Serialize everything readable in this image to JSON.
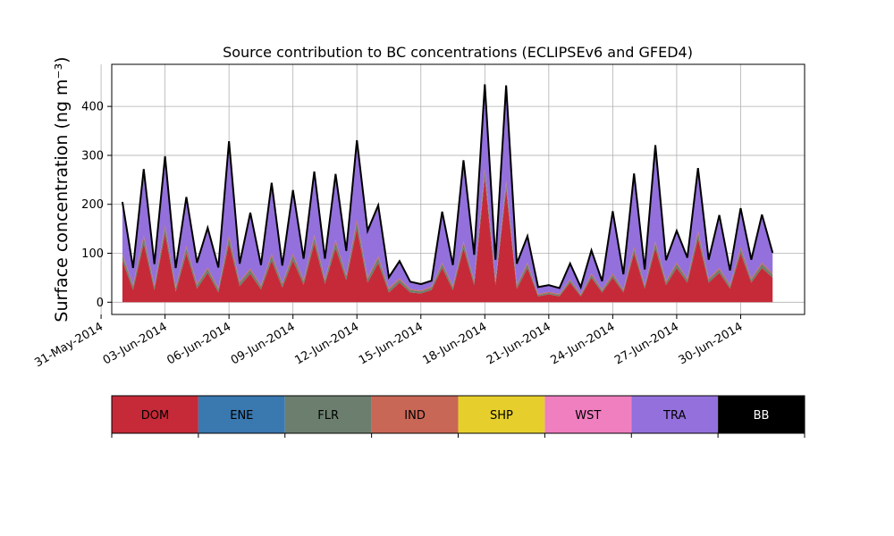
{
  "chart_data": {
    "type": "area",
    "title": "Source contribution to BC concentrations (ECLIPSEv6 and GFED4)",
    "ylabel": "Surface concentration (ng m⁻³)",
    "xlabel": "",
    "ylim": [
      -25,
      486
    ],
    "xlim": [
      "2014-05-31T12:00",
      "2014-07-03T00:00"
    ],
    "yticks": [
      0,
      100,
      200,
      300,
      400
    ],
    "xticks": [
      "31-May-2014",
      "03-Jun-2014",
      "06-Jun-2014",
      "09-Jun-2014",
      "12-Jun-2014",
      "15-Jun-2014",
      "18-Jun-2014",
      "21-Jun-2014",
      "24-Jun-2014",
      "27-Jun-2014",
      "30-Jun-2014"
    ],
    "grid": true,
    "legend_placement": "bottom",
    "legend": [
      {
        "name": "DOM",
        "color": "#c62a38"
      },
      {
        "name": "ENE",
        "color": "#3a78b0"
      },
      {
        "name": "FLR",
        "color": "#6c7f6e"
      },
      {
        "name": "IND",
        "color": "#c96756"
      },
      {
        "name": "SHP",
        "color": "#e6cf2d"
      },
      {
        "name": "WST",
        "color": "#ef7fbf"
      },
      {
        "name": "TRA",
        "color": "#9370db"
      },
      {
        "name": "BB",
        "color": "#000000"
      }
    ],
    "x": [
      "2014-06-01T00:00",
      "2014-06-01T12:00",
      "2014-06-02T00:00",
      "2014-06-02T12:00",
      "2014-06-03T00:00",
      "2014-06-03T12:00",
      "2014-06-04T00:00",
      "2014-06-04T12:00",
      "2014-06-05T00:00",
      "2014-06-05T12:00",
      "2014-06-06T00:00",
      "2014-06-06T12:00",
      "2014-06-07T00:00",
      "2014-06-07T12:00",
      "2014-06-08T00:00",
      "2014-06-08T12:00",
      "2014-06-09T00:00",
      "2014-06-09T12:00",
      "2014-06-10T00:00",
      "2014-06-10T12:00",
      "2014-06-11T00:00",
      "2014-06-11T12:00",
      "2014-06-12T00:00",
      "2014-06-12T12:00",
      "2014-06-13T00:00",
      "2014-06-13T12:00",
      "2014-06-14T00:00",
      "2014-06-14T12:00",
      "2014-06-15T00:00",
      "2014-06-15T12:00",
      "2014-06-16T00:00",
      "2014-06-16T12:00",
      "2014-06-17T00:00",
      "2014-06-17T12:00",
      "2014-06-18T00:00",
      "2014-06-18T12:00",
      "2014-06-19T00:00",
      "2014-06-19T12:00",
      "2014-06-20T00:00",
      "2014-06-20T12:00",
      "2014-06-21T00:00",
      "2014-06-21T12:00",
      "2014-06-22T00:00",
      "2014-06-22T12:00",
      "2014-06-23T00:00",
      "2014-06-23T12:00",
      "2014-06-24T00:00",
      "2014-06-24T12:00",
      "2014-06-25T00:00",
      "2014-06-25T12:00",
      "2014-06-26T00:00",
      "2014-06-26T12:00",
      "2014-06-27T00:00",
      "2014-06-27T12:00",
      "2014-06-28T00:00",
      "2014-06-28T12:00",
      "2014-06-29T00:00",
      "2014-06-29T12:00",
      "2014-06-30T00:00",
      "2014-06-30T12:00",
      "2014-07-01T00:00",
      "2014-07-01T12:00"
    ],
    "series": [
      {
        "name": "DOM",
        "color": "#c62a38",
        "values": [
          85,
          25,
          120,
          25,
          140,
          22,
          100,
          28,
          60,
          20,
          120,
          33,
          58,
          26,
          85,
          30,
          85,
          36,
          120,
          38,
          110,
          45,
          150,
          40,
          80,
          20,
          40,
          20,
          18,
          25,
          70,
          25,
          110,
          35,
          255,
          35,
          230,
          27,
          70,
          12,
          16,
          12,
          40,
          12,
          50,
          20,
          50,
          20,
          100,
          28,
          110,
          35,
          70,
          40,
          130,
          40,
          60,
          28,
          100,
          40,
          70,
          50
        ]
      },
      {
        "name": "FLR",
        "color": "#6c7f6e",
        "values": [
          10,
          8,
          12,
          7,
          13,
          7,
          11,
          7,
          8,
          6,
          12,
          7,
          8,
          6,
          10,
          7,
          10,
          7,
          12,
          7,
          12,
          8,
          14,
          8,
          10,
          6,
          6,
          5,
          4,
          5,
          8,
          6,
          10,
          7,
          14,
          7,
          13,
          6,
          8,
          3,
          3,
          3,
          5,
          3,
          6,
          4,
          6,
          4,
          9,
          5,
          10,
          6,
          8,
          6,
          11,
          6,
          7,
          5,
          9,
          6,
          8,
          6
        ]
      },
      {
        "name": "IND",
        "color": "#c96756",
        "values": [
          4,
          3,
          5,
          3,
          5,
          3,
          4,
          3,
          3,
          3,
          5,
          3,
          3,
          3,
          4,
          3,
          4,
          3,
          5,
          3,
          5,
          3,
          6,
          3,
          4,
          3,
          3,
          2,
          2,
          2,
          3,
          3,
          4,
          3,
          6,
          3,
          5,
          3,
          3,
          2,
          2,
          2,
          2,
          2,
          3,
          2,
          3,
          2,
          4,
          2,
          4,
          3,
          3,
          3,
          5,
          3,
          3,
          3,
          4,
          3,
          3,
          3
        ]
      },
      {
        "name": "TRA",
        "color": "#9370db",
        "values": [
          100,
          32,
          125,
          40,
          130,
          35,
          95,
          40,
          78,
          40,
          185,
          33,
          110,
          38,
          140,
          33,
          125,
          40,
          125,
          38,
          130,
          46,
          155,
          90,
          100,
          20,
          32,
          13,
          12,
          11,
          100,
          40,
          160,
          50,
          150,
          40,
          180,
          40,
          50,
          13,
          13,
          11,
          30,
          13,
          45,
          16,
          123,
          30,
          140,
          30,
          180,
          40,
          60,
          40,
          125,
          36,
          105,
          27,
          75,
          36,
          95,
          40
        ]
      },
      {
        "name": "BB",
        "color": "#000000",
        "values": [
          6,
          2,
          10,
          3,
          10,
          3,
          5,
          3,
          3,
          2,
          7,
          3,
          4,
          3,
          5,
          2,
          5,
          3,
          5,
          3,
          5,
          3,
          6,
          5,
          4,
          2,
          3,
          2,
          1,
          1,
          4,
          2,
          6,
          2,
          20,
          2,
          15,
          3,
          4,
          1,
          1,
          1,
          2,
          1,
          2,
          1,
          4,
          1,
          10,
          2,
          17,
          2,
          5,
          2,
          3,
          2,
          3,
          2,
          4,
          2,
          3,
          2
        ]
      }
    ]
  }
}
